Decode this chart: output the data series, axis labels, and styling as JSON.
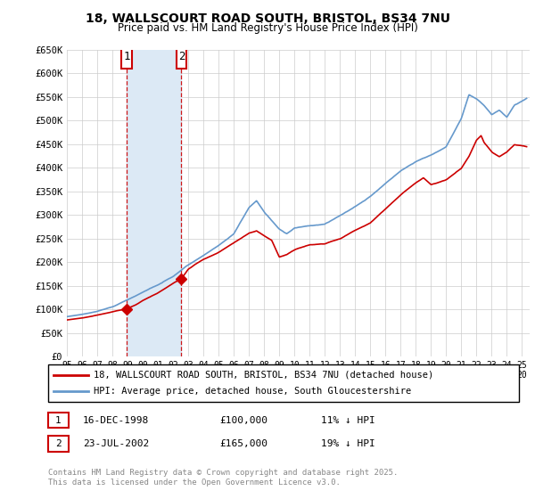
{
  "title1": "18, WALLSCOURT ROAD SOUTH, BRISTOL, BS34 7NU",
  "title2": "Price paid vs. HM Land Registry's House Price Index (HPI)",
  "ylim": [
    0,
    650000
  ],
  "yticks": [
    0,
    50000,
    100000,
    150000,
    200000,
    250000,
    300000,
    350000,
    400000,
    450000,
    500000,
    550000,
    600000,
    650000
  ],
  "ytick_labels": [
    "£0",
    "£50K",
    "£100K",
    "£150K",
    "£200K",
    "£250K",
    "£300K",
    "£350K",
    "£400K",
    "£450K",
    "£500K",
    "£550K",
    "£600K",
    "£650K"
  ],
  "xlim_start": 1995.0,
  "xlim_end": 2025.5,
  "xticks": [
    1995,
    1996,
    1997,
    1998,
    1999,
    2000,
    2001,
    2002,
    2003,
    2004,
    2005,
    2006,
    2007,
    2008,
    2009,
    2010,
    2011,
    2012,
    2013,
    2014,
    2015,
    2016,
    2017,
    2018,
    2019,
    2020,
    2021,
    2022,
    2023,
    2024,
    2025
  ],
  "red_line_color": "#cc0000",
  "blue_line_color": "#6699cc",
  "purchase1_x": 1998.96,
  "purchase1_y": 100000,
  "purchase1_label": "1",
  "purchase1_date": "16-DEC-1998",
  "purchase1_price": "£100,000",
  "purchase1_hpi": "11% ↓ HPI",
  "purchase2_x": 2002.55,
  "purchase2_y": 165000,
  "purchase2_label": "2",
  "purchase2_date": "23-JUL-2002",
  "purchase2_price": "£165,000",
  "purchase2_hpi": "19% ↓ HPI",
  "shaded_region_start": 1998.96,
  "shaded_region_end": 2002.55,
  "legend_line1": "18, WALLSCOURT ROAD SOUTH, BRISTOL, BS34 7NU (detached house)",
  "legend_line2": "HPI: Average price, detached house, South Gloucestershire",
  "footnote": "Contains HM Land Registry data © Crown copyright and database right 2025.\nThis data is licensed under the Open Government Licence v3.0.",
  "background_color": "#ffffff",
  "grid_color": "#cccccc",
  "shaded_color": "#dce9f5"
}
